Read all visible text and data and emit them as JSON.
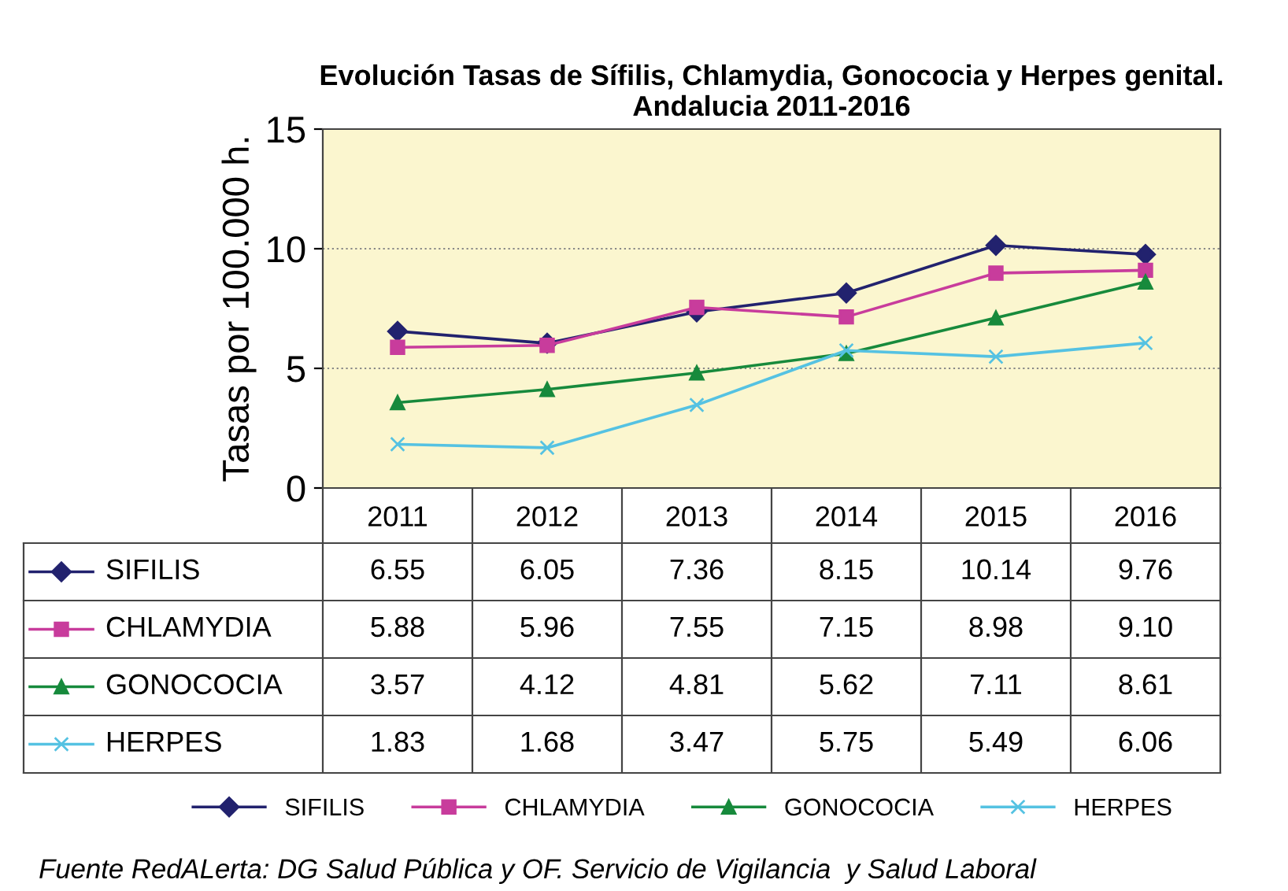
{
  "chart_data": {
    "type": "line",
    "title": "Evolución Tasas de Sífilis, Chlamydia, Gonococia y Herpes genital. Andalucia 2011-2016",
    "ylabel": "Tasas por 100.000 h.",
    "categories": [
      "2011",
      "2012",
      "2013",
      "2014",
      "2015",
      "2016"
    ],
    "series": [
      {
        "name": "SIFILIS",
        "color": "#22226e",
        "marker": "diamond",
        "values": [
          6.55,
          6.05,
          7.36,
          8.15,
          10.14,
          9.76
        ],
        "value_labels": [
          "6.55",
          "6.05",
          "7.36",
          "8.15",
          "10.14",
          "9.76"
        ]
      },
      {
        "name": "CHLAMYDIA",
        "color": "#c83c9c",
        "marker": "square",
        "values": [
          5.88,
          5.96,
          7.55,
          7.15,
          8.98,
          9.1
        ],
        "value_labels": [
          "5.88",
          "5.96",
          "7.55",
          "7.15",
          "8.98",
          "9.10"
        ]
      },
      {
        "name": "GONOCOCIA",
        "color": "#178a3c",
        "marker": "triangle",
        "values": [
          3.57,
          4.12,
          4.81,
          5.62,
          7.11,
          8.61
        ],
        "value_labels": [
          "3.57",
          "4.12",
          "4.81",
          "5.62",
          "7.11",
          "8.61"
        ]
      },
      {
        "name": "HERPES",
        "color": "#55c2e2",
        "marker": "cross",
        "values": [
          1.83,
          1.68,
          3.47,
          5.75,
          5.49,
          6.06
        ],
        "value_labels": [
          "1.83",
          "1.68",
          "3.47",
          "5.75",
          "5.49",
          "6.06"
        ]
      }
    ],
    "ylim": [
      0,
      15
    ],
    "yticks": [
      0,
      5,
      10,
      15
    ],
    "grid": "y",
    "legend": "bottom",
    "annotations": [
      "Fuente RedALerta: DG Salud Pública y OF. Servicio de Vigilancia  y Salud Laboral"
    ]
  }
}
